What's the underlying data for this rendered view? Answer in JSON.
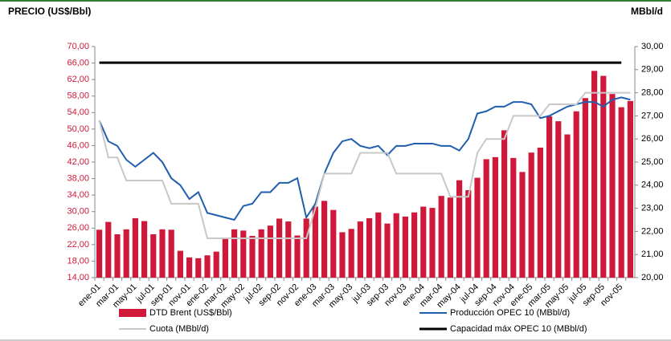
{
  "chart_data": {
    "type": "bar_line",
    "title": "PRECIO (US$/Bbl)",
    "y2_title": "MBbl/d",
    "categories": [
      "ene-01",
      null,
      "mar-01",
      null,
      "may-01",
      null,
      "jul-01",
      null,
      "sep-01",
      null,
      "nov-01",
      null,
      "ene-02",
      null,
      "mar-02",
      null,
      "may-02",
      null,
      "jul-02",
      null,
      "sep-02",
      null,
      "nov-02",
      null,
      "ene-03",
      null,
      "mar-03",
      null,
      "may-03",
      null,
      "jul-03",
      null,
      "sep-03",
      null,
      "nov-03",
      null,
      "ene-04",
      null,
      "mar-04",
      null,
      "may-04",
      null,
      "jul-04",
      null,
      "sep-04",
      null,
      "nov-04",
      null,
      "ene-05",
      null,
      "mar-05",
      null,
      "may-05",
      null,
      "jul-05",
      null,
      "sep-05",
      null,
      "nov-05",
      null
    ],
    "series": [
      {
        "name": "DTD Brent (US$/Bbl)",
        "type": "bar",
        "color": "#d0193a",
        "axis": "y",
        "values": [
          25.6,
          27.5,
          24.5,
          25.7,
          28.4,
          27.7,
          24.5,
          25.7,
          25.6,
          20.5,
          18.9,
          18.7,
          19.4,
          20.3,
          23.7,
          25.7,
          25.4,
          24.1,
          25.7,
          26.6,
          28.3,
          27.6,
          24.2,
          28.3,
          31.2,
          32.6,
          30.4,
          25.0,
          25.8,
          27.6,
          28.4,
          29.8,
          27.1,
          29.6,
          28.8,
          29.8,
          31.2,
          30.9,
          33.8,
          33.4,
          37.6,
          35.2,
          38.2,
          42.7,
          43.2,
          49.7,
          43.0,
          39.6,
          44.3,
          45.5,
          53.1,
          51.9,
          48.7,
          54.3,
          57.5,
          64.1,
          62.9,
          58.5,
          55.3,
          56.8
        ]
      },
      {
        "name": "Producción OPEC 10 (MBbl/d)",
        "type": "line",
        "color": "#1f5fae",
        "axis": "y2",
        "values": [
          26.8,
          25.9,
          25.7,
          25.1,
          24.8,
          25.1,
          25.4,
          25.0,
          24.3,
          24.0,
          23.4,
          23.7,
          22.8,
          22.7,
          22.6,
          22.5,
          23.1,
          23.2,
          23.7,
          23.7,
          24.1,
          24.1,
          24.3,
          22.6,
          23.2,
          24.5,
          25.4,
          25.9,
          26.0,
          25.7,
          25.6,
          25.7,
          25.3,
          25.7,
          25.7,
          25.8,
          25.8,
          25.8,
          25.7,
          25.7,
          25.5,
          26.0,
          27.1,
          27.2,
          27.4,
          27.4,
          27.6,
          27.6,
          27.5,
          26.9,
          27.0,
          27.2,
          27.4,
          27.5,
          27.6,
          27.6,
          27.4,
          27.7,
          27.8,
          27.7
        ]
      },
      {
        "name": "Cuota (MBbl/d)",
        "type": "line",
        "color": "#c8c8c8",
        "axis": "y2",
        "values": [
          26.8,
          25.2,
          25.2,
          24.2,
          24.2,
          24.2,
          24.2,
          24.2,
          23.2,
          23.2,
          23.2,
          23.2,
          21.7,
          21.7,
          21.7,
          21.7,
          21.7,
          21.7,
          21.7,
          21.7,
          21.7,
          21.7,
          21.7,
          21.7,
          23.0,
          24.5,
          24.5,
          24.5,
          24.5,
          25.4,
          25.4,
          25.4,
          25.4,
          24.5,
          24.5,
          24.5,
          24.5,
          24.5,
          24.5,
          23.5,
          23.5,
          23.5,
          25.4,
          26.0,
          26.0,
          26.0,
          27.0,
          27.0,
          27.0,
          27.0,
          27.5,
          27.5,
          27.5,
          27.5,
          28.0,
          28.0,
          28.0,
          28.0,
          28.0,
          28.0
        ]
      },
      {
        "name": "Capacidad máx OPEC 10 (MBbl/d)",
        "type": "line",
        "color": "#000000",
        "axis": "y2",
        "values": [
          29.3,
          29.3,
          29.3,
          29.3,
          29.3,
          29.3,
          29.3,
          29.3,
          29.3,
          29.3,
          29.3,
          29.3,
          29.3,
          29.3,
          29.3,
          29.3,
          29.3,
          29.3,
          29.3,
          29.3,
          29.3,
          29.3,
          29.3,
          29.3,
          29.3,
          29.3,
          29.3,
          29.3,
          29.3,
          29.3,
          29.3,
          29.3,
          29.3,
          29.3,
          29.3,
          29.3,
          29.3,
          29.3,
          29.3,
          29.3,
          29.3,
          29.3,
          29.3,
          29.3,
          29.3,
          29.3,
          29.3,
          29.3,
          29.3,
          29.3,
          29.3,
          29.3,
          29.3,
          29.3,
          29.3,
          29.3,
          29.3,
          29.3,
          29.3,
          null
        ]
      }
    ],
    "ylim": [
      14,
      70
    ],
    "yticks": [
      {
        "value": 14,
        "label": "14,00"
      },
      {
        "value": 18,
        "label": "18,00"
      },
      {
        "value": 22,
        "label": "22,00"
      },
      {
        "value": 26,
        "label": "26,00"
      },
      {
        "value": 30,
        "label": "30,00"
      },
      {
        "value": 34,
        "label": "34,00"
      },
      {
        "value": 38,
        "label": "38,00"
      },
      {
        "value": 42,
        "label": "42,00"
      },
      {
        "value": 46,
        "label": "46,00"
      },
      {
        "value": 50,
        "label": "50,00"
      },
      {
        "value": 54,
        "label": "54,00"
      },
      {
        "value": 58,
        "label": "58,00"
      },
      {
        "value": 62,
        "label": "62,00"
      },
      {
        "value": 66,
        "label": "66,00"
      },
      {
        "value": 70,
        "label": "70,00"
      }
    ],
    "y2lim": [
      20,
      30
    ],
    "y2ticks": [
      {
        "value": 20,
        "label": "20,00"
      },
      {
        "value": 21,
        "label": "21,00"
      },
      {
        "value": 22,
        "label": "22,00"
      },
      {
        "value": 23,
        "label": "23,00"
      },
      {
        "value": 24,
        "label": "24,00"
      },
      {
        "value": 25,
        "label": "25,00"
      },
      {
        "value": 26,
        "label": "26,00"
      },
      {
        "value": 27,
        "label": "27,00"
      },
      {
        "value": 28,
        "label": "28,00"
      },
      {
        "value": 29,
        "label": "29,00"
      },
      {
        "value": 30,
        "label": "30,00"
      }
    ],
    "grid": false
  }
}
